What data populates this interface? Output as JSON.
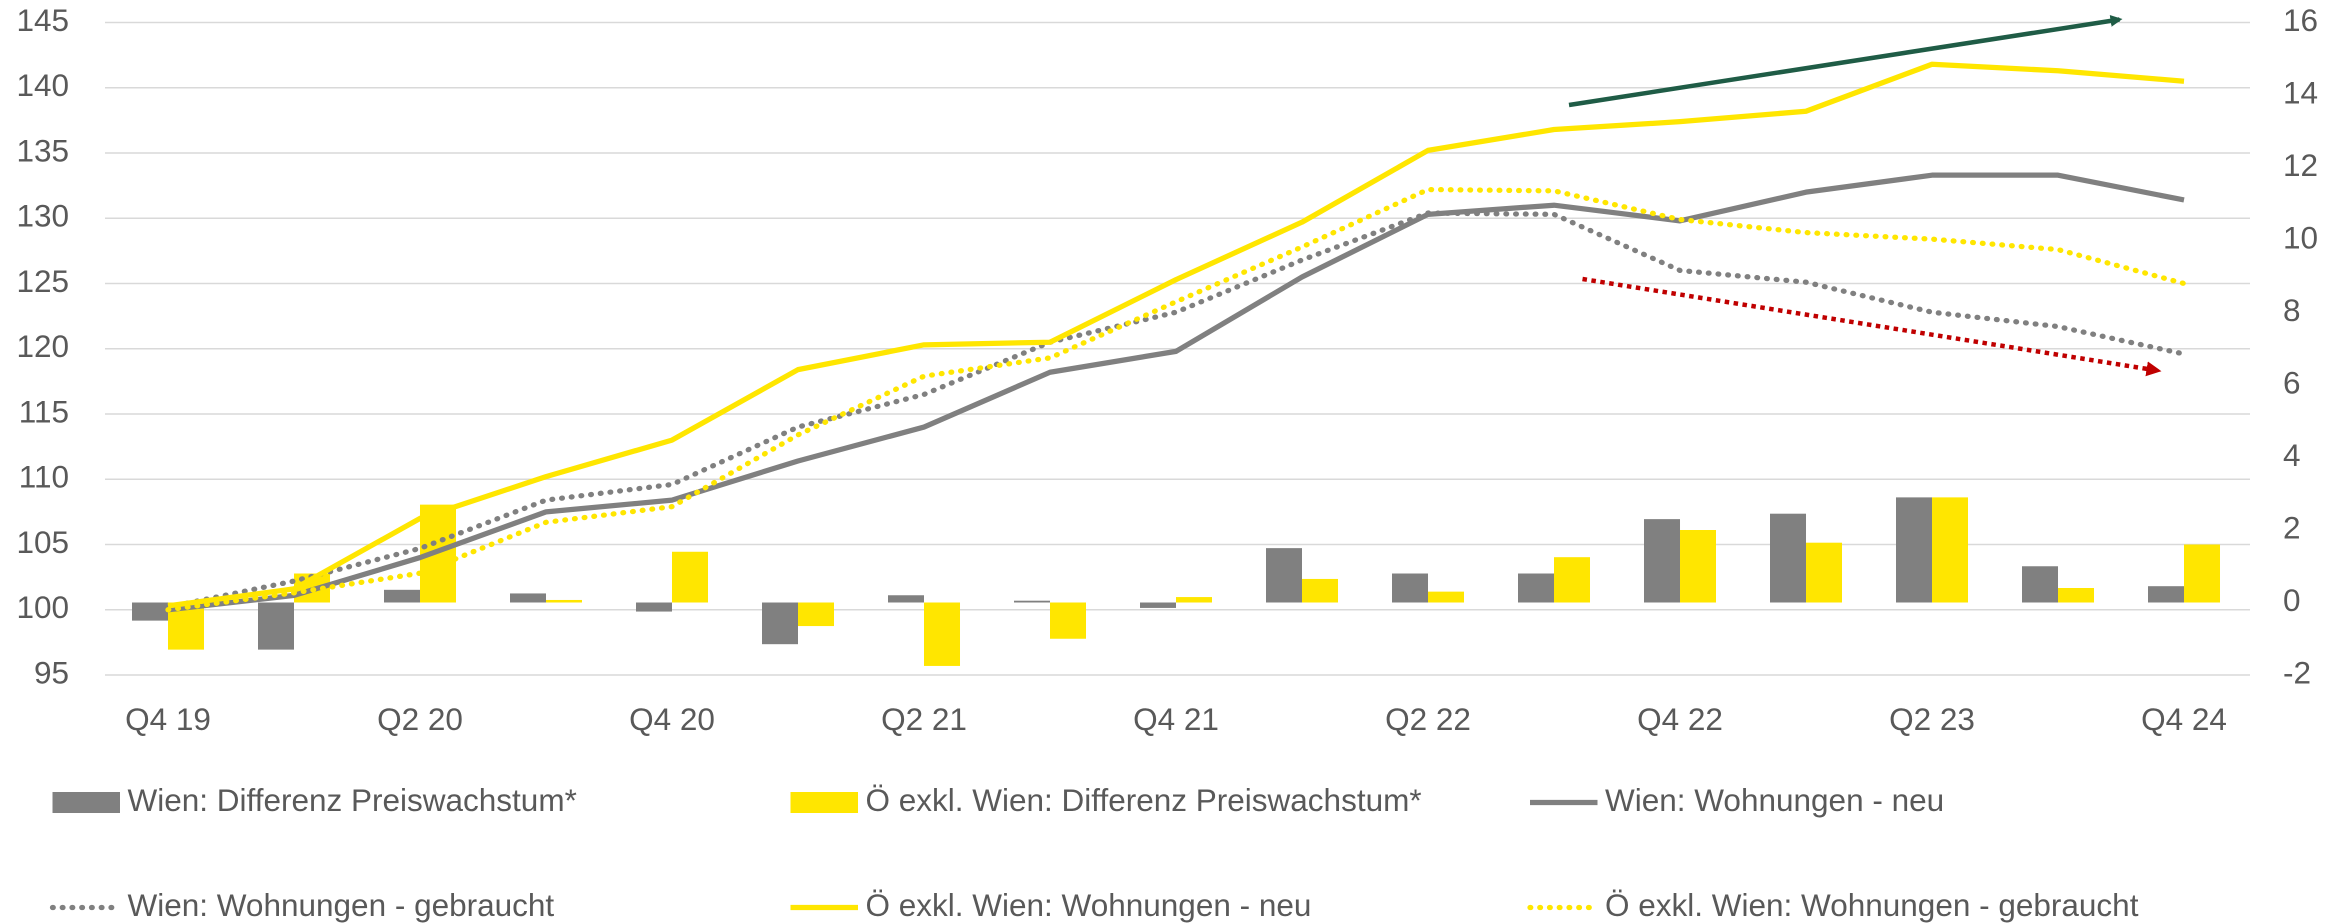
{
  "chart_data": {
    "type": "bar",
    "categories": [
      "Q4 19",
      null,
      "Q2 20",
      null,
      "Q4 20",
      null,
      "Q2 21",
      null,
      "Q4 21",
      null,
      "Q2 22",
      null,
      "Q4 22",
      null,
      "Q2 23",
      null,
      "Q4 24"
    ],
    "ylim": [
      95,
      145
    ],
    "yticks": [
      95,
      100,
      105,
      110,
      115,
      120,
      125,
      130,
      135,
      140,
      145
    ],
    "y2lim": [
      -2,
      16
    ],
    "y2ticks": [
      -2,
      0,
      2,
      4,
      6,
      8,
      10,
      12,
      14,
      16
    ],
    "grid": true,
    "legend": "bottom",
    "series": [
      {
        "name": "Wien: Differenz Preiswachstum*",
        "type": "bar",
        "axis": "y2",
        "color": "#808080",
        "values": [
          -0.5,
          -1.3,
          0.35,
          0.25,
          -0.25,
          -1.15,
          0.2,
          0.05,
          -0.15,
          1.5,
          0.8,
          0.8,
          2.3,
          2.45,
          2.9,
          1.0,
          0.45
        ]
      },
      {
        "name": "Ö exkl. Wien: Differenz Preiswachstum*",
        "type": "bar",
        "axis": "y2",
        "color": "#ffe600",
        "values": [
          -1.3,
          0.8,
          2.7,
          0.07,
          1.4,
          -0.65,
          -1.75,
          -1.0,
          0.15,
          0.65,
          0.3,
          1.25,
          2.0,
          1.65,
          2.9,
          0.4,
          1.6
        ]
      },
      {
        "name": "Wien: Wohnungen - neu",
        "type": "line",
        "style": "solid",
        "color": "#808080",
        "values": [
          100,
          101.1,
          104,
          107.5,
          108.4,
          111.4,
          114,
          118.2,
          119.8,
          125.5,
          130.3,
          131,
          129.8,
          132,
          133.3,
          133.3,
          131.4
        ]
      },
      {
        "name": "Wien: Wohnungen - gebraucht",
        "type": "line",
        "style": "dotted",
        "color": "#808080",
        "values": [
          100.2,
          102.2,
          104.7,
          108.4,
          109.6,
          114,
          116.5,
          120.5,
          122.8,
          126.8,
          130.4,
          130.3,
          126,
          125.1,
          122.8,
          121.7,
          119.6
        ]
      },
      {
        "name": "Ö exkl. Wien: Wohnungen - neu",
        "type": "line",
        "style": "solid",
        "color": "#ffe600",
        "values": [
          100.3,
          101.6,
          107,
          110.2,
          113,
          118.4,
          120.3,
          120.5,
          125.3,
          129.7,
          135.2,
          136.8,
          137.4,
          138.2,
          141.8,
          141.3,
          140.5
        ]
      },
      {
        "name": "Ö exkl. Wien: Wohnungen - gebraucht",
        "type": "line",
        "style": "dotted",
        "color": "#ffe600",
        "values": [
          100,
          101.3,
          102.8,
          106.7,
          107.9,
          113.4,
          117.9,
          119.3,
          123.6,
          127.8,
          132.2,
          132.1,
          129.9,
          128.9,
          128.4,
          127.6,
          125
        ]
      }
    ]
  }
}
